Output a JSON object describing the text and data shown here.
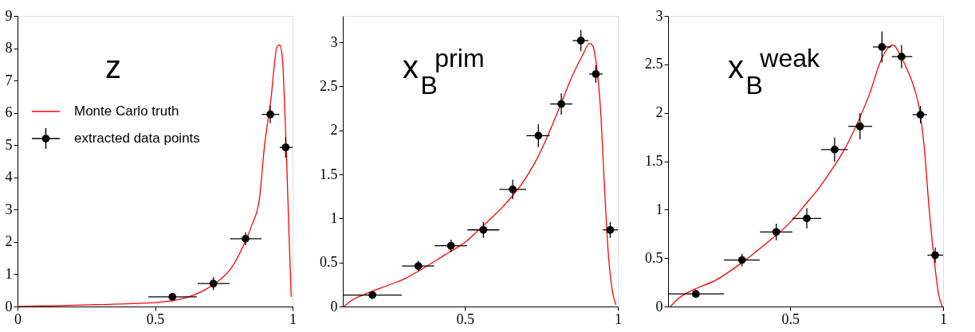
{
  "chart_data": [
    {
      "type": "scatter",
      "title": "z",
      "xlim": [
        0,
        1
      ],
      "ylim": [
        0,
        9
      ],
      "xticks": [
        0,
        0.5,
        1
      ],
      "yticks": [
        0,
        1,
        2,
        3,
        4,
        5,
        6,
        7,
        8,
        9
      ],
      "legend": "top left",
      "grid": false,
      "series": [
        {
          "name": "Monte Carlo truth",
          "type": "line",
          "color": "#ff0000",
          "x": [
            0,
            0.104,
            0.29,
            0.496,
            0.608,
            0.664,
            0.729,
            0.776,
            0.813,
            0.851,
            0.879,
            0.897,
            0.921,
            0.944,
            0.953,
            0.963,
            0.97,
            0.977,
            0.986,
            0.995
          ],
          "values": [
            0,
            0.02,
            0.06,
            0.12,
            0.26,
            0.44,
            0.78,
            1.18,
            1.74,
            2.5,
            3.3,
            4.9,
            6.4,
            8.06,
            8.1,
            7.7,
            6.46,
            4.9,
            2.5,
            0.3
          ]
        },
        {
          "name": "extracted data points",
          "marker": "circle",
          "color": "#000000",
          "x": [
            0.563,
            0.712,
            0.829,
            0.919,
            0.975
          ],
          "values": [
            0.3,
            0.71,
            2.1,
            5.95,
            4.93
          ],
          "errors": [
            0.1,
            0.2,
            0.2,
            0.27,
            0.32
          ],
          "xerrors": [
            [
              0.475,
              0.652
            ],
            [
              0.655,
              0.771
            ],
            [
              0.773,
              0.887
            ],
            [
              0.888,
              0.951
            ],
            [
              0.953,
              1.0
            ]
          ]
        }
      ]
    },
    {
      "type": "scatter",
      "title": "x$_{B}$$^{prim}$",
      "xlim": [
        0.1,
        1
      ],
      "ylim": [
        0,
        3.3
      ],
      "xticks": [
        0.5,
        1
      ],
      "yticks": [
        0,
        0.5,
        1,
        1.5,
        2,
        2.5,
        3
      ],
      "grid": false,
      "series": [
        {
          "type": "line",
          "color": "#ff0000",
          "x": [
            0.104,
            0.121,
            0.18,
            0.263,
            0.305,
            0.347,
            0.431,
            0.5,
            0.557,
            0.641,
            0.683,
            0.725,
            0.767,
            0.809,
            0.851,
            0.884,
            0.908,
            0.918,
            0.93,
            0.943,
            0.956,
            0.968,
            0.981,
            0.993
          ],
          "values": [
            0,
            0.05,
            0.15,
            0.26,
            0.32,
            0.4,
            0.58,
            0.73,
            0.91,
            1.2,
            1.38,
            1.61,
            1.91,
            2.26,
            2.62,
            2.85,
            2.99,
            2.96,
            2.74,
            2.26,
            1.38,
            0.64,
            0.2,
            0.02
          ]
        },
        {
          "marker": "circle",
          "color": "#000000",
          "x": [
            0.197,
            0.347,
            0.454,
            0.56,
            0.656,
            0.74,
            0.815,
            0.879,
            0.928,
            0.975
          ],
          "values": [
            0.13,
            0.46,
            0.69,
            0.87,
            1.33,
            1.94,
            2.3,
            3.02,
            2.64,
            0.87
          ],
          "errors": [
            0.04,
            0.06,
            0.07,
            0.09,
            0.11,
            0.13,
            0.12,
            0.12,
            0.1,
            0.09
          ],
          "xerrors": [
            [
              0.1,
              0.293
            ],
            [
              0.294,
              0.399
            ],
            [
              0.4,
              0.507
            ],
            [
              0.508,
              0.612
            ],
            [
              0.612,
              0.7
            ],
            [
              0.701,
              0.777
            ],
            [
              0.778,
              0.851
            ],
            [
              0.852,
              0.904
            ],
            [
              0.906,
              0.95
            ],
            [
              0.951,
              1.0
            ]
          ]
        }
      ]
    },
    {
      "type": "scatter",
      "title": "x$_{B}$$^{weak}$",
      "xlim": [
        0.1,
        1
      ],
      "ylim": [
        0,
        3
      ],
      "xticks": [
        0.5,
        1
      ],
      "yticks": [
        0,
        0.5,
        1,
        1.5,
        2,
        2.5,
        3
      ],
      "grid": false,
      "series": [
        {
          "type": "line",
          "color": "#ff0000",
          "x": [
            0.108,
            0.129,
            0.188,
            0.255,
            0.34,
            0.424,
            0.5,
            0.551,
            0.593,
            0.635,
            0.677,
            0.719,
            0.761,
            0.795,
            0.82,
            0.837,
            0.854,
            0.879,
            0.905,
            0.922,
            0.939,
            0.955,
            0.972,
            0.985,
            0.997
          ],
          "values": [
            0,
            0.07,
            0.18,
            0.27,
            0.45,
            0.66,
            0.87,
            1.06,
            1.22,
            1.41,
            1.62,
            1.89,
            2.21,
            2.53,
            2.67,
            2.7,
            2.63,
            2.47,
            2.26,
            2.05,
            1.62,
            0.98,
            0.45,
            0.13,
            0
          ]
        },
        {
          "marker": "circle",
          "color": "#000000",
          "x": [
            0.191,
            0.342,
            0.454,
            0.554,
            0.645,
            0.728,
            0.8,
            0.864,
            0.926,
            0.974
          ],
          "values": [
            0.13,
            0.48,
            0.77,
            0.91,
            1.62,
            1.86,
            2.68,
            2.58,
            1.98,
            0.53
          ],
          "errors": [
            0.04,
            0.065,
            0.085,
            0.105,
            0.125,
            0.135,
            0.16,
            0.12,
            0.09,
            0.08
          ],
          "xerrors": [
            [
              0.1,
              0.283
            ],
            [
              0.283,
              0.4
            ],
            [
              0.401,
              0.507
            ],
            [
              0.507,
              0.601
            ],
            [
              0.601,
              0.688
            ],
            [
              0.69,
              0.768
            ],
            [
              0.77,
              0.83
            ],
            [
              0.832,
              0.899
            ],
            [
              0.9,
              0.947
            ],
            [
              0.949,
              1.0
            ]
          ]
        }
      ]
    }
  ]
}
